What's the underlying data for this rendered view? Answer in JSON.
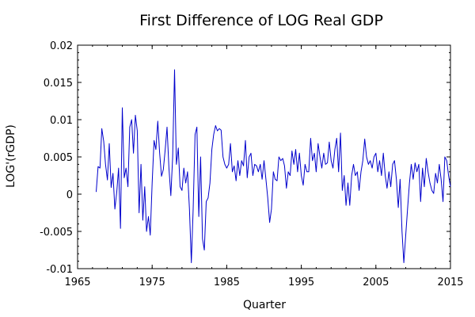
{
  "chart_data": {
    "type": "line",
    "title": "First Difference of LOG Real GDP",
    "xlabel": "Quarter",
    "ylabel": "LOG'(rGDP)",
    "xlim": [
      1965,
      2015
    ],
    "ylim": [
      -0.01,
      0.02
    ],
    "xticks": [
      1965,
      1975,
      1985,
      1995,
      2005,
      2015
    ],
    "xtick_labels": [
      "1965",
      "1975",
      "1985",
      "1995",
      "2005",
      "2015"
    ],
    "yticks": [
      -0.01,
      -0.005,
      0,
      0.005,
      0.01,
      0.015,
      0.02
    ],
    "ytick_labels": [
      "-0.01",
      "-0.005",
      "0",
      "0.005",
      "0.01",
      "0.015",
      "0.02"
    ],
    "grid": false,
    "series": [
      {
        "color": "#0000cc",
        "points": [
          [
            1967.5,
            0.0003
          ],
          [
            1967.75,
            0.0037
          ],
          [
            1968.0,
            0.0035
          ],
          [
            1968.25,
            0.0088
          ],
          [
            1968.5,
            0.0071
          ],
          [
            1968.75,
            0.004
          ],
          [
            1969.0,
            0.0019
          ],
          [
            1969.25,
            0.0068
          ],
          [
            1969.5,
            0.0009
          ],
          [
            1969.75,
            0.0028
          ],
          [
            1970.0,
            -0.002
          ],
          [
            1970.25,
            0.0003
          ],
          [
            1970.5,
            0.0035
          ],
          [
            1970.75,
            -0.0046
          ],
          [
            1971.0,
            0.0116
          ],
          [
            1971.25,
            0.0022
          ],
          [
            1971.5,
            0.0035
          ],
          [
            1971.75,
            0.001
          ],
          [
            1972.0,
            0.009
          ],
          [
            1972.25,
            0.01
          ],
          [
            1972.5,
            0.0055
          ],
          [
            1972.75,
            0.0106
          ],
          [
            1973.0,
            0.0085
          ],
          [
            1973.25,
            -0.0025
          ],
          [
            1973.5,
            0.004
          ],
          [
            1973.75,
            -0.0035
          ],
          [
            1974.0,
            0.001
          ],
          [
            1974.25,
            -0.005
          ],
          [
            1974.5,
            -0.003
          ],
          [
            1974.75,
            -0.0055
          ],
          [
            1975.0,
            0.0015
          ],
          [
            1975.25,
            0.0072
          ],
          [
            1975.5,
            0.006
          ],
          [
            1975.75,
            0.0098
          ],
          [
            1976.0,
            0.0056
          ],
          [
            1976.25,
            0.0024
          ],
          [
            1976.5,
            0.0033
          ],
          [
            1976.75,
            0.006
          ],
          [
            1977.0,
            0.009
          ],
          [
            1977.25,
            0.0035
          ],
          [
            1977.5,
            -0.0002
          ],
          [
            1977.75,
            0.005
          ],
          [
            1978.0,
            0.0167
          ],
          [
            1978.25,
            0.004
          ],
          [
            1978.5,
            0.0062
          ],
          [
            1978.75,
            0.001
          ],
          [
            1979.0,
            0.0005
          ],
          [
            1979.25,
            0.0035
          ],
          [
            1979.5,
            0.0015
          ],
          [
            1979.75,
            0.003
          ],
          [
            1980.0,
            -0.002
          ],
          [
            1980.25,
            -0.0092
          ],
          [
            1980.5,
            -0.002
          ],
          [
            1980.75,
            0.008
          ],
          [
            1981.0,
            0.009
          ],
          [
            1981.25,
            -0.003
          ],
          [
            1981.5,
            0.005
          ],
          [
            1981.75,
            -0.006
          ],
          [
            1982.0,
            -0.0075
          ],
          [
            1982.25,
            -0.001
          ],
          [
            1982.5,
            -0.0005
          ],
          [
            1982.75,
            0.0015
          ],
          [
            1983.0,
            0.006
          ],
          [
            1983.25,
            0.008
          ],
          [
            1983.5,
            0.0092
          ],
          [
            1983.75,
            0.0085
          ],
          [
            1984.0,
            0.0088
          ],
          [
            1984.25,
            0.0086
          ],
          [
            1984.5,
            0.005
          ],
          [
            1984.75,
            0.004
          ],
          [
            1985.0,
            0.0035
          ],
          [
            1985.25,
            0.004
          ],
          [
            1985.5,
            0.0068
          ],
          [
            1985.75,
            0.003
          ],
          [
            1986.0,
            0.0038
          ],
          [
            1986.25,
            0.0018
          ],
          [
            1986.5,
            0.0045
          ],
          [
            1986.75,
            0.0025
          ],
          [
            1987.0,
            0.0045
          ],
          [
            1987.25,
            0.0038
          ],
          [
            1987.5,
            0.0072
          ],
          [
            1987.75,
            0.0022
          ],
          [
            1988.0,
            0.005
          ],
          [
            1988.25,
            0.0055
          ],
          [
            1988.5,
            0.0025
          ],
          [
            1988.75,
            0.004
          ],
          [
            1989.0,
            0.0038
          ],
          [
            1989.25,
            0.003
          ],
          [
            1989.5,
            0.004
          ],
          [
            1989.75,
            0.002
          ],
          [
            1990.0,
            0.0045
          ],
          [
            1990.25,
            0.002
          ],
          [
            1990.5,
            -0.0005
          ],
          [
            1990.75,
            -0.0038
          ],
          [
            1991.0,
            -0.002
          ],
          [
            1991.25,
            0.003
          ],
          [
            1991.5,
            0.002
          ],
          [
            1991.75,
            0.0018
          ],
          [
            1992.0,
            0.005
          ],
          [
            1992.25,
            0.0045
          ],
          [
            1992.5,
            0.0048
          ],
          [
            1992.75,
            0.0038
          ],
          [
            1993.0,
            0.0008
          ],
          [
            1993.25,
            0.003
          ],
          [
            1993.5,
            0.0025
          ],
          [
            1993.75,
            0.0058
          ],
          [
            1994.0,
            0.004
          ],
          [
            1994.25,
            0.006
          ],
          [
            1994.5,
            0.003
          ],
          [
            1994.75,
            0.0055
          ],
          [
            1995.0,
            0.0025
          ],
          [
            1995.25,
            0.0012
          ],
          [
            1995.5,
            0.004
          ],
          [
            1995.75,
            0.003
          ],
          [
            1996.0,
            0.003
          ],
          [
            1996.25,
            0.0075
          ],
          [
            1996.5,
            0.0045
          ],
          [
            1996.75,
            0.0055
          ],
          [
            1997.0,
            0.003
          ],
          [
            1997.25,
            0.0068
          ],
          [
            1997.5,
            0.005
          ],
          [
            1997.75,
            0.0035
          ],
          [
            1998.0,
            0.0055
          ],
          [
            1998.25,
            0.004
          ],
          [
            1998.5,
            0.0042
          ],
          [
            1998.75,
            0.007
          ],
          [
            1999.0,
            0.0045
          ],
          [
            1999.25,
            0.0035
          ],
          [
            1999.5,
            0.006
          ],
          [
            1999.75,
            0.0075
          ],
          [
            2000.0,
            0.003
          ],
          [
            2000.25,
            0.0082
          ],
          [
            2000.5,
            0.0005
          ],
          [
            2000.75,
            0.0025
          ],
          [
            2001.0,
            -0.0015
          ],
          [
            2001.25,
            0.0015
          ],
          [
            2001.5,
            -0.0015
          ],
          [
            2001.75,
            0.0025
          ],
          [
            2002.0,
            0.004
          ],
          [
            2002.25,
            0.0025
          ],
          [
            2002.5,
            0.003
          ],
          [
            2002.75,
            0.0005
          ],
          [
            2003.0,
            0.003
          ],
          [
            2003.25,
            0.0045
          ],
          [
            2003.5,
            0.0074
          ],
          [
            2003.75,
            0.005
          ],
          [
            2004.0,
            0.004
          ],
          [
            2004.25,
            0.0045
          ],
          [
            2004.5,
            0.0035
          ],
          [
            2004.75,
            0.005
          ],
          [
            2005.0,
            0.0055
          ],
          [
            2005.25,
            0.003
          ],
          [
            2005.5,
            0.0045
          ],
          [
            2005.75,
            0.0025
          ],
          [
            2006.0,
            0.0055
          ],
          [
            2006.25,
            0.0025
          ],
          [
            2006.5,
            0.0008
          ],
          [
            2006.75,
            0.003
          ],
          [
            2007.0,
            0.001
          ],
          [
            2007.25,
            0.004
          ],
          [
            2007.5,
            0.0045
          ],
          [
            2007.75,
            0.002
          ],
          [
            2008.0,
            -0.0018
          ],
          [
            2008.25,
            0.002
          ],
          [
            2008.5,
            -0.005
          ],
          [
            2008.75,
            -0.0092
          ],
          [
            2009.0,
            -0.0055
          ],
          [
            2009.25,
            -0.002
          ],
          [
            2009.5,
            0.0015
          ],
          [
            2009.75,
            0.004
          ],
          [
            2010.0,
            0.002
          ],
          [
            2010.25,
            0.0042
          ],
          [
            2010.5,
            0.003
          ],
          [
            2010.75,
            0.004
          ],
          [
            2011.0,
            -0.001
          ],
          [
            2011.25,
            0.0035
          ],
          [
            2011.5,
            0.001
          ],
          [
            2011.75,
            0.0048
          ],
          [
            2012.0,
            0.003
          ],
          [
            2012.25,
            0.0015
          ],
          [
            2012.5,
            0.0005
          ],
          [
            2012.75,
            0.0001
          ],
          [
            2013.0,
            0.0028
          ],
          [
            2013.25,
            0.0015
          ],
          [
            2013.5,
            0.004
          ],
          [
            2013.75,
            0.002
          ],
          [
            2014.0,
            -0.001
          ],
          [
            2014.25,
            0.005
          ],
          [
            2014.5,
            0.0045
          ],
          [
            2014.75,
            0.0025
          ],
          [
            2015.0,
            0.001
          ]
        ]
      }
    ]
  }
}
